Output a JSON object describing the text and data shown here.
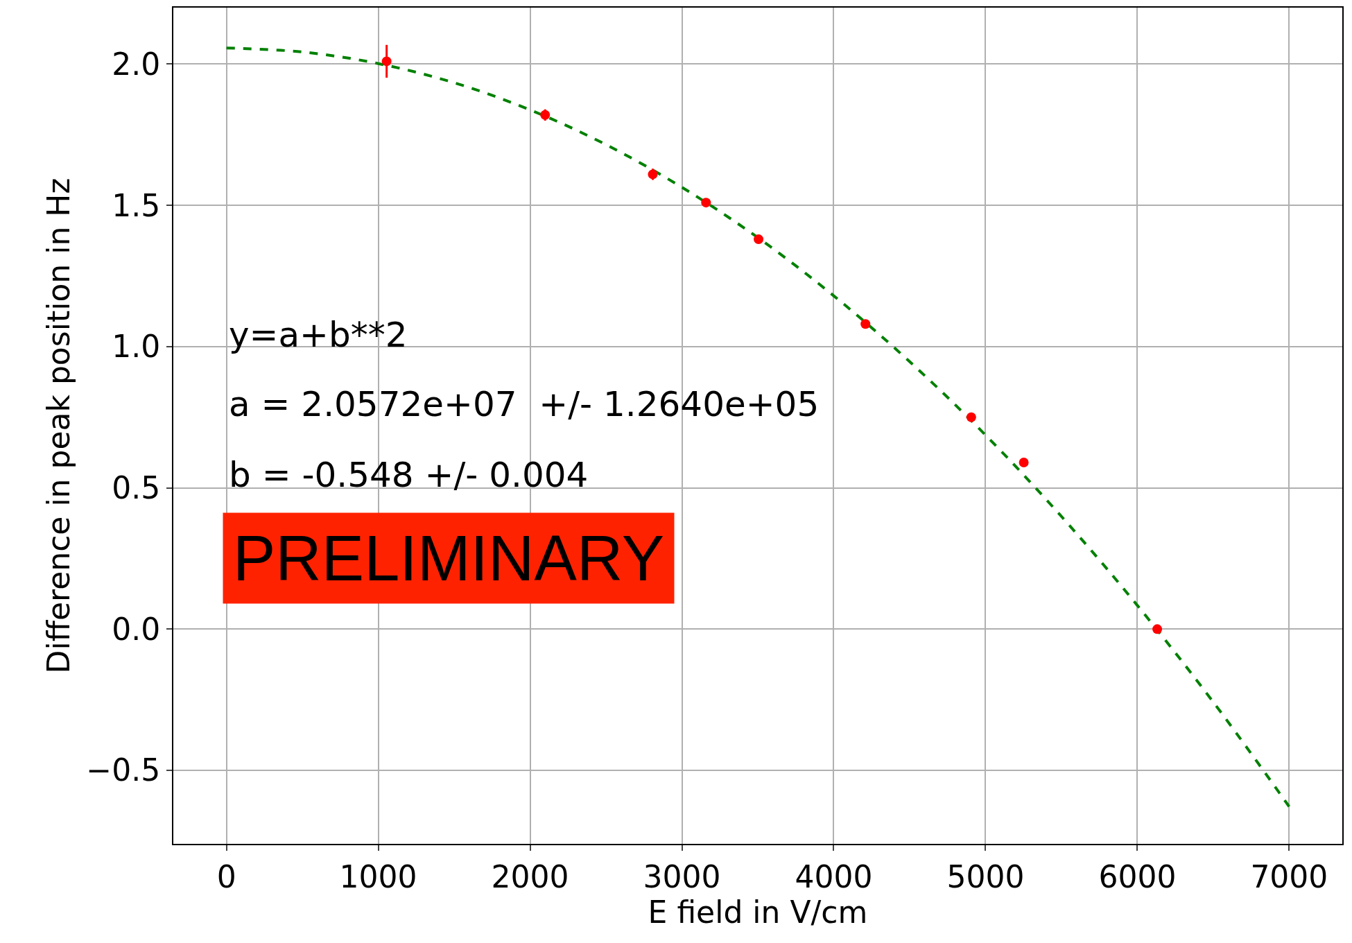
{
  "chart_data": {
    "type": "scatter",
    "xlabel": "E field in V/cm",
    "ylabel": "Difference in peak position in Hz",
    "xlim": [
      -350,
      7350
    ],
    "ylim": [
      -0.76,
      2.2
    ],
    "xticks": [
      0,
      1000,
      2000,
      3000,
      4000,
      5000,
      6000,
      7000
    ],
    "yticks": [
      {
        "value": -0.5,
        "label": "−0.5"
      },
      {
        "value": 0.0,
        "label": "0.0"
      },
      {
        "value": 0.5,
        "label": "0.5"
      },
      {
        "value": 1.0,
        "label": "1.0"
      },
      {
        "value": 1.5,
        "label": "1.5"
      },
      {
        "value": 2.0,
        "label": "2.0"
      }
    ],
    "grid": true,
    "series": [
      {
        "type": "line",
        "color": "#008000",
        "line_style": "dashed",
        "marker": "none",
        "x": [
          0,
          500,
          1000,
          1500,
          2000,
          2500,
          3000,
          3500,
          4000,
          4500,
          5000,
          5500,
          6000,
          6500,
          7000
        ],
        "values": [
          2.057,
          2.043,
          2.002,
          1.934,
          1.838,
          1.715,
          1.564,
          1.386,
          1.18,
          0.947,
          0.687,
          0.399,
          0.084,
          -0.258,
          -0.628
        ]
      },
      {
        "color": "#ff0000",
        "marker": "circle",
        "x": [
          1055,
          2099,
          2808,
          3159,
          3505,
          4209,
          4906,
          5252,
          6131
        ],
        "values": [
          2.01,
          1.82,
          1.61,
          1.51,
          1.38,
          1.08,
          0.75,
          0.59,
          0.0
        ],
        "errors": [
          0.058,
          0.02,
          0.02,
          0.01,
          0.01,
          0.01,
          0.01,
          0.01,
          0.01
        ]
      }
    ],
    "annotations": [
      "y=a+b**2",
      "a = 2.0572e+07  +/- 1.2640e+05",
      "b = -0.548 +/- 0.004",
      "PRELIMINARY"
    ]
  }
}
